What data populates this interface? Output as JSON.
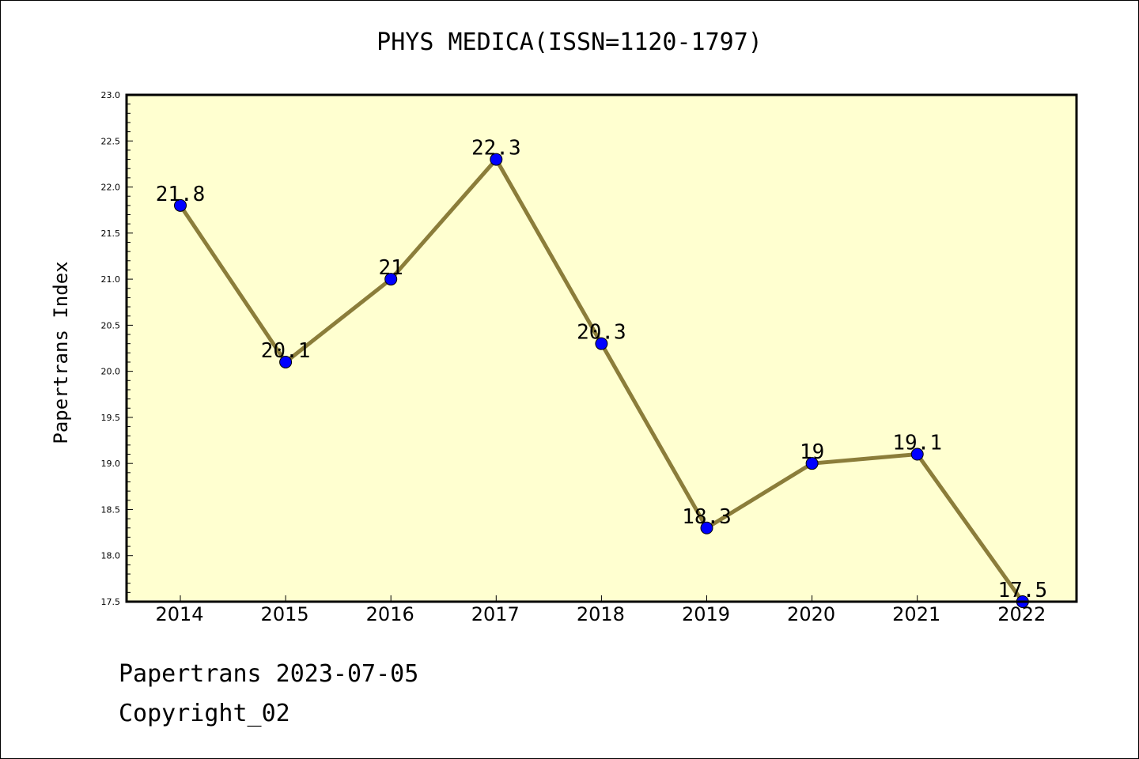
{
  "chart_data": {
    "type": "line",
    "title": "PHYS MEDICA(ISSN=1120-1797)",
    "ylabel": "Papertrans Index",
    "xlabel": "",
    "categories": [
      "2014",
      "2015",
      "2016",
      "2017",
      "2018",
      "2019",
      "2020",
      "2021",
      "2022"
    ],
    "series": [
      {
        "values": [
          21.8,
          20.1,
          21.0,
          22.3,
          20.3,
          18.3,
          19.0,
          19.1,
          17.5
        ],
        "labels": [
          "21.8",
          "20.1",
          "21",
          "22.3",
          "20.3",
          "18.3",
          "19",
          "19.1",
          "17.5"
        ]
      }
    ],
    "ylim": [
      17.5,
      23.0
    ],
    "yticks": [
      "17.5",
      "18.0",
      "18.5",
      "19.0",
      "19.5",
      "20.0",
      "20.5",
      "21.0",
      "21.5",
      "22.0",
      "22.5",
      "23.0"
    ],
    "grid": false,
    "colors": {
      "plot_background": "#ffffd0",
      "line": "#8b7d3a",
      "marker": "#0000ff"
    }
  },
  "footer": {
    "line1": "Papertrans 2023-07-05",
    "line2": "Copyright_02"
  }
}
